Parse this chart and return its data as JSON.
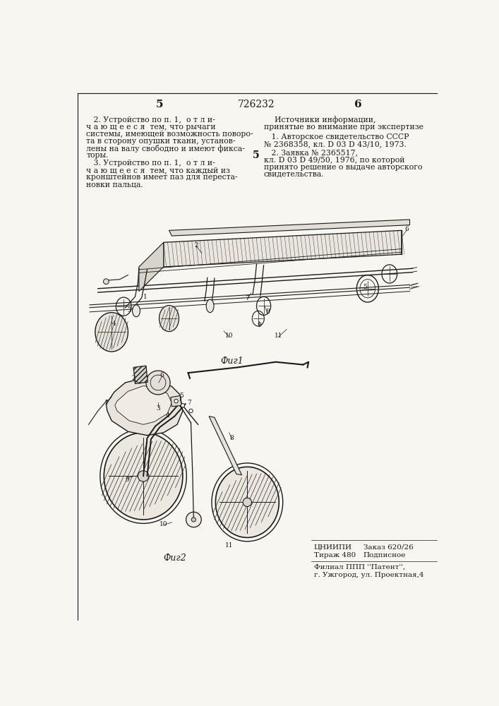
{
  "bg_color": "#f8f6f0",
  "text_color": "#1a1a1a",
  "page_number_left": "5",
  "page_number_center": "726232",
  "page_number_right": "6",
  "left_text": [
    "   2. Устройство по п. 1,  о т л и-",
    "ч а ю щ е е с я  тем, что рычаги",
    "системы, имеющей возможность поворо-",
    "та в сторону опушки ткани, установ-",
    "лены на валу свободно и имеют фикса-",
    "торы.",
    "   3. Устройство по п. 1,  о т л и-",
    "ч а ю щ е е с я  тем, что каждый из",
    "кронштейнов имеет паз для переста-",
    "новки пальца."
  ],
  "right_text_title": "Источники информации,",
  "right_text_subtitle": "принятые во внимание при экспертизе",
  "right_ref1_line1": "   1. Авторское свидетельство СССР",
  "right_ref1_line2": "№ 2368358, кл. D 03 D 43/10, 1973.",
  "right_ref2_label": "5",
  "right_ref2_line1": "   2. Заявка № 2365517,",
  "right_ref2_line2": "кл. D 03 D 49/50, 1976, по которой",
  "right_ref2_line3": "принято решение о выдаче авторского",
  "right_ref2_line4": "свидетельства.",
  "fig1_caption": "Фuг1",
  "fig2_caption": "Фuг2",
  "bottom_left1": "ЦНИИПИ",
  "bottom_left2": "Тираж 480",
  "bottom_order": "Заказ 620/26",
  "bottom_podp": "Подписное",
  "bottom_filial1": "Филиал ППП ''Патент'',",
  "bottom_filial2": "г. Ужгород, ул. Проектная,4"
}
